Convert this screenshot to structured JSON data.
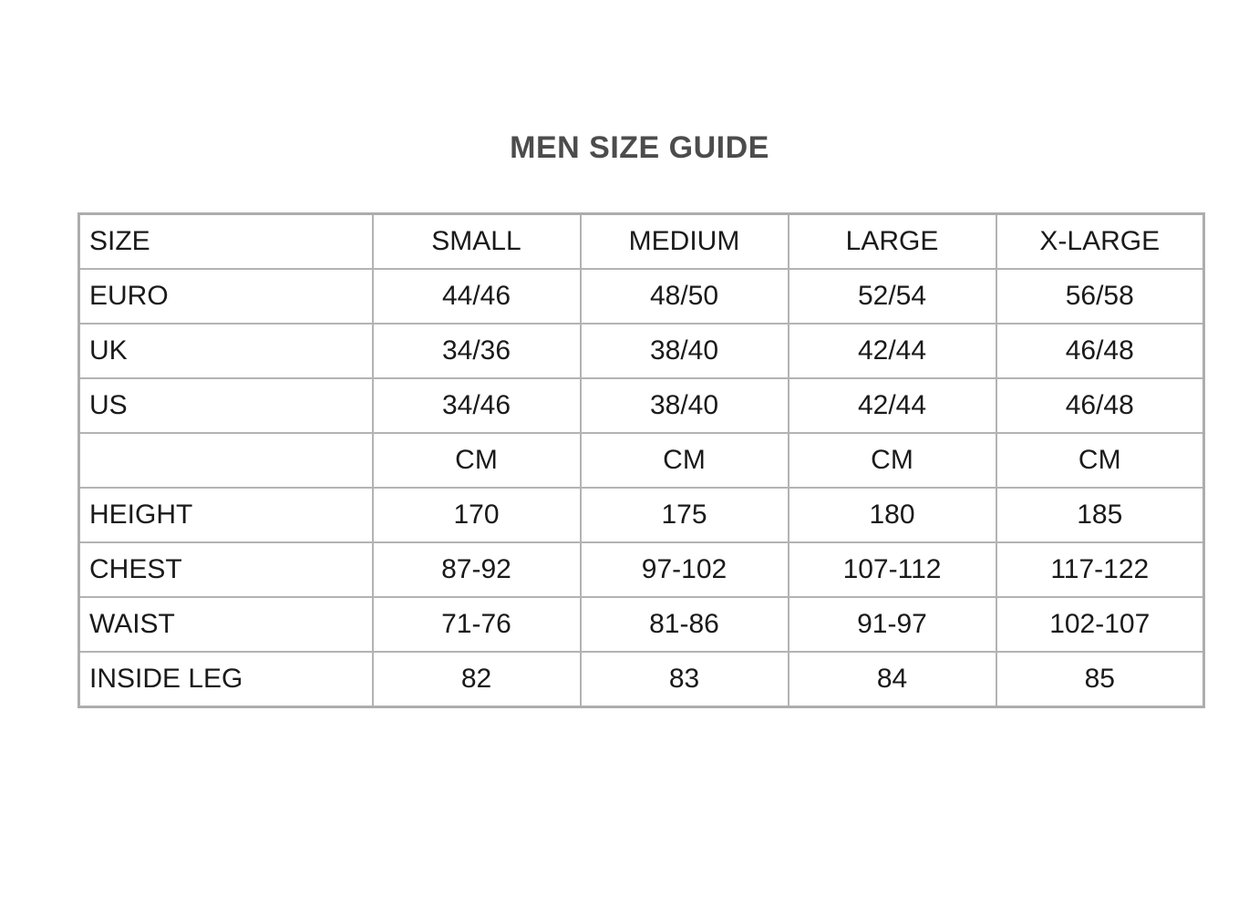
{
  "title": "MEN SIZE GUIDE",
  "colors": {
    "header_bg": "#dde7f2",
    "cell_bg": "#ffffff",
    "border": "#b3b3b3",
    "text": "#1a1a1a",
    "title_text": "#4c4c4c"
  },
  "chart_data": {
    "type": "table",
    "title": "MEN SIZE GUIDE",
    "columns": [
      "SIZE",
      "SMALL",
      "MEDIUM",
      "LARGE",
      "X-LARGE"
    ],
    "rows": [
      [
        "EURO",
        "44/46",
        "48/50",
        "52/54",
        "56/58"
      ],
      [
        "UK",
        "34/36",
        "38/40",
        "42/44",
        "46/48"
      ],
      [
        "US",
        "34/46",
        "38/40",
        "42/44",
        "46/48"
      ],
      [
        "",
        "CM",
        "CM",
        "CM",
        "CM"
      ],
      [
        "HEIGHT",
        "170",
        "175",
        "180",
        "185"
      ],
      [
        "CHEST",
        "87-92",
        "97-102",
        "107-112",
        "117-122"
      ],
      [
        "WAIST",
        "71-76",
        "81-86",
        "91-97",
        "102-107"
      ],
      [
        "INSIDE LEG",
        "82",
        "83",
        "84",
        "85"
      ]
    ],
    "unit_row_index": 3,
    "layout": {
      "header_row_shaded": true,
      "label_column_shaded": true,
      "unit_row_shaded": true,
      "grid": true
    }
  }
}
